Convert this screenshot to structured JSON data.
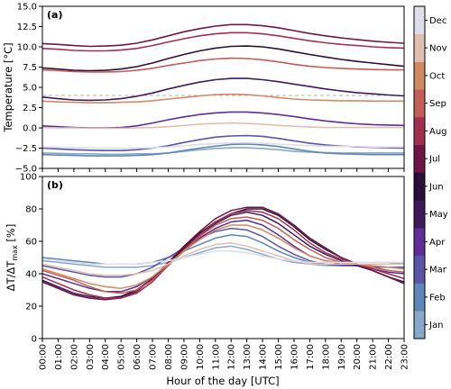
{
  "chart_data": [
    {
      "type": "line",
      "panel_label": "(a)",
      "ylabel": "Temperature [°C]",
      "ylim": [
        -5.0,
        15.0
      ],
      "yticks": [
        -5.0,
        -2.5,
        0.0,
        2.5,
        5.0,
        7.5,
        10.0,
        12.5,
        15.0
      ],
      "ytick_labels": [
        "−5.0",
        "−2.5",
        "0.0",
        "2.5",
        "5.0",
        "7.5",
        "10.0",
        "12.5",
        "15.0"
      ],
      "reference_line": 4.0,
      "series": [
        {
          "name": "Jan",
          "values": [
            -3.1,
            -3.15,
            -3.2,
            -3.2,
            -3.25,
            -3.25,
            -3.2,
            -3.2,
            -3.1,
            -2.9,
            -2.7,
            -2.55,
            -2.45,
            -2.45,
            -2.55,
            -2.7,
            -2.9,
            -3.0,
            -3.05,
            -3.1,
            -3.1,
            -3.1,
            -3.1,
            -3.1
          ]
        },
        {
          "name": "Feb",
          "values": [
            -3.3,
            -3.35,
            -3.4,
            -3.45,
            -3.45,
            -3.45,
            -3.4,
            -3.3,
            -3.1,
            -2.8,
            -2.5,
            -2.25,
            -2.05,
            -2.0,
            -2.1,
            -2.3,
            -2.6,
            -2.9,
            -3.1,
            -3.2,
            -3.25,
            -3.3,
            -3.3,
            -3.3
          ]
        },
        {
          "name": "Mar",
          "values": [
            -2.5,
            -2.6,
            -2.7,
            -2.75,
            -2.8,
            -2.8,
            -2.7,
            -2.5,
            -2.2,
            -1.8,
            -1.45,
            -1.15,
            -1.0,
            -0.95,
            -1.05,
            -1.3,
            -1.6,
            -1.9,
            -2.1,
            -2.25,
            -2.35,
            -2.4,
            -2.45,
            -2.5
          ]
        },
        {
          "name": "Apr",
          "values": [
            0.25,
            0.15,
            0.05,
            0.0,
            0.0,
            0.05,
            0.25,
            0.6,
            1.0,
            1.35,
            1.65,
            1.85,
            1.95,
            1.95,
            1.85,
            1.65,
            1.4,
            1.1,
            0.85,
            0.65,
            0.5,
            0.4,
            0.35,
            0.3
          ]
        },
        {
          "name": "May",
          "values": [
            3.8,
            3.6,
            3.45,
            3.4,
            3.45,
            3.6,
            3.9,
            4.3,
            4.8,
            5.25,
            5.65,
            5.95,
            6.1,
            6.1,
            5.95,
            5.7,
            5.4,
            5.1,
            4.8,
            4.55,
            4.35,
            4.2,
            4.05,
            3.95
          ]
        },
        {
          "name": "Jun",
          "values": [
            7.4,
            7.25,
            7.1,
            7.05,
            7.1,
            7.25,
            7.55,
            8.0,
            8.55,
            9.05,
            9.5,
            9.85,
            10.05,
            10.1,
            10.0,
            9.75,
            9.4,
            9.05,
            8.75,
            8.45,
            8.2,
            8.0,
            7.8,
            7.6
          ]
        },
        {
          "name": "Jul",
          "values": [
            10.4,
            10.3,
            10.15,
            10.05,
            10.1,
            10.2,
            10.45,
            10.85,
            11.35,
            11.85,
            12.25,
            12.55,
            12.75,
            12.75,
            12.6,
            12.35,
            12.0,
            11.65,
            11.35,
            11.1,
            10.9,
            10.7,
            10.55,
            10.45
          ]
        },
        {
          "name": "Aug",
          "values": [
            9.8,
            9.7,
            9.55,
            9.5,
            9.5,
            9.6,
            9.8,
            10.15,
            10.6,
            11.0,
            11.35,
            11.6,
            11.75,
            11.75,
            11.6,
            11.35,
            11.05,
            10.75,
            10.5,
            10.3,
            10.15,
            10.0,
            9.9,
            9.85
          ]
        },
        {
          "name": "Sep",
          "values": [
            7.15,
            7.05,
            6.95,
            6.9,
            6.9,
            6.95,
            7.1,
            7.35,
            7.7,
            8.0,
            8.3,
            8.5,
            8.6,
            8.55,
            8.4,
            8.15,
            7.85,
            7.6,
            7.45,
            7.35,
            7.25,
            7.2,
            7.15,
            7.15
          ]
        },
        {
          "name": "Oct",
          "values": [
            3.3,
            3.2,
            3.15,
            3.1,
            3.1,
            3.15,
            3.2,
            3.35,
            3.55,
            3.75,
            3.95,
            4.1,
            4.15,
            4.1,
            3.95,
            3.75,
            3.55,
            3.45,
            3.4,
            3.35,
            3.35,
            3.3,
            3.3,
            3.3
          ]
        },
        {
          "name": "Nov",
          "values": [
            0.05,
            0.0,
            0.0,
            -0.05,
            -0.05,
            -0.05,
            0.0,
            0.05,
            0.15,
            0.3,
            0.45,
            0.55,
            0.6,
            0.55,
            0.45,
            0.3,
            0.2,
            0.1,
            0.05,
            0.05,
            0.05,
            0.05,
            0.05,
            0.05
          ]
        },
        {
          "name": "Dec",
          "values": [
            -2.35,
            -2.4,
            -2.45,
            -2.45,
            -2.5,
            -2.5,
            -2.5,
            -2.45,
            -2.35,
            -2.2,
            -2.05,
            -1.95,
            -1.85,
            -1.85,
            -1.9,
            -2.0,
            -2.1,
            -2.2,
            -2.25,
            -2.3,
            -2.3,
            -2.35,
            -2.35,
            -2.35
          ]
        }
      ]
    },
    {
      "type": "line",
      "panel_label": "(b)",
      "ylabel": "ΔT/ΔT_max [%]",
      "ylabel_main": "ΔT/ΔT",
      "ylabel_sub": "max",
      "ylabel_unit": " [%]",
      "ylim": [
        0,
        100
      ],
      "yticks": [
        0,
        20,
        40,
        60,
        80,
        100
      ],
      "ytick_labels": [
        "0",
        "20",
        "40",
        "60",
        "80",
        "100"
      ],
      "xlabel": "Hour of the day [UTC]",
      "x": [
        "00:00",
        "01:00",
        "02:00",
        "03:00",
        "04:00",
        "05:00",
        "06:00",
        "07:00",
        "08:00",
        "09:00",
        "10:00",
        "11:00",
        "12:00",
        "13:00",
        "14:00",
        "15:00",
        "16:00",
        "17:00",
        "18:00",
        "19:00",
        "20:00",
        "21:00",
        "22:00",
        "23:00"
      ],
      "series": [
        {
          "name": "Jan",
          "values": [
            48,
            47,
            46,
            45,
            44,
            44,
            44,
            45,
            47,
            50,
            53,
            56,
            57,
            55,
            52,
            49,
            47,
            46,
            45,
            45,
            45,
            46,
            46,
            47
          ]
        },
        {
          "name": "Feb",
          "values": [
            50,
            49,
            48,
            47,
            46,
            46,
            46,
            47,
            50,
            54,
            58,
            62,
            64,
            63,
            59,
            54,
            50,
            47,
            46,
            45,
            46,
            46,
            46,
            47
          ]
        },
        {
          "name": "Mar",
          "values": [
            45,
            43,
            41,
            39,
            38,
            38,
            40,
            44,
            50,
            56,
            62,
            66,
            68,
            67,
            63,
            57,
            52,
            48,
            46,
            45,
            45,
            44,
            44,
            44
          ]
        },
        {
          "name": "Apr",
          "values": [
            40,
            37,
            34,
            31,
            29,
            29,
            32,
            38,
            46,
            54,
            62,
            68,
            72,
            73,
            70,
            64,
            57,
            51,
            48,
            46,
            45,
            43,
            41,
            40
          ]
        },
        {
          "name": "May",
          "values": [
            36,
            32,
            28,
            26,
            25,
            26,
            30,
            37,
            46,
            55,
            64,
            71,
            76,
            78,
            76,
            71,
            64,
            57,
            52,
            48,
            45,
            42,
            38,
            35
          ]
        },
        {
          "name": "Jun",
          "values": [
            35,
            31,
            27,
            25,
            24,
            26,
            30,
            37,
            46,
            56,
            65,
            72,
            77,
            80,
            80,
            76,
            69,
            61,
            55,
            50,
            46,
            42,
            38,
            34
          ]
        },
        {
          "name": "Jul",
          "values": [
            35,
            31,
            27,
            25,
            24,
            25,
            29,
            37,
            47,
            57,
            66,
            74,
            79,
            81,
            81,
            77,
            70,
            62,
            56,
            50,
            46,
            42,
            38,
            34
          ]
        },
        {
          "name": "Aug",
          "values": [
            38,
            34,
            30,
            27,
            25,
            25,
            28,
            35,
            45,
            55,
            64,
            72,
            77,
            79,
            78,
            74,
            67,
            59,
            53,
            49,
            46,
            43,
            40,
            37
          ]
        },
        {
          "name": "Sep",
          "values": [
            42,
            39,
            36,
            32,
            29,
            28,
            30,
            36,
            45,
            54,
            63,
            70,
            74,
            75,
            73,
            68,
            61,
            55,
            50,
            47,
            46,
            44,
            42,
            41
          ]
        },
        {
          "name": "Oct",
          "values": [
            43,
            40,
            37,
            34,
            32,
            31,
            33,
            38,
            46,
            54,
            61,
            67,
            70,
            70,
            67,
            62,
            56,
            51,
            48,
            47,
            46,
            45,
            44,
            43
          ]
        },
        {
          "name": "Nov",
          "values": [
            46,
            44,
            42,
            40,
            39,
            39,
            40,
            42,
            46,
            51,
            55,
            58,
            59,
            57,
            54,
            51,
            48,
            46,
            46,
            46,
            46,
            46,
            46,
            46
          ]
        },
        {
          "name": "Dec",
          "values": [
            49,
            48,
            47,
            46,
            46,
            46,
            46,
            47,
            48,
            50,
            52,
            54,
            54,
            53,
            51,
            49,
            48,
            47,
            47,
            47,
            47,
            47,
            47,
            47
          ]
        }
      ]
    }
  ],
  "colorbar": {
    "labels": [
      "Jan",
      "Feb",
      "Mar",
      "Apr",
      "May",
      "Jun",
      "Jul",
      "Aug",
      "Sep",
      "Oct",
      "Nov",
      "Dec"
    ],
    "colors": [
      "#87a9c8",
      "#5f86b8",
      "#5b55a8",
      "#5e2d96",
      "#3e1a5a",
      "#2a0f38",
      "#6e1746",
      "#a32f50",
      "#c25d58",
      "#cf8a64",
      "#dfc0b0",
      "#dedde8"
    ]
  }
}
